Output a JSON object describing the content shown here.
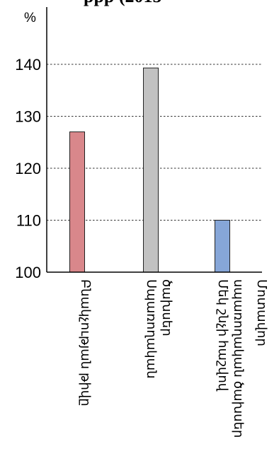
{
  "chart_data": {
    "type": "bar",
    "title_fragment": "ppp (2015",
    "ylabel": "%",
    "ylim": [
      100,
      150
    ],
    "yticks": [
      100,
      110,
      120,
      130,
      140
    ],
    "grid": true,
    "categories": [
      [
        "Բնակչության թիվը"
      ],
      [
        "Սպառողական",
        "ծախսեր"
      ],
      [
        "Մեկ շնչի հաշվով",
        "սպառողական ծախսեր"
      ],
      [
        "Մոտավոր"
      ]
    ],
    "values": [
      127,
      139.3,
      110,
      null
    ],
    "colors": [
      "#d9878b",
      "#c2c2c2",
      "#86a6d8",
      "#ffffff"
    ]
  }
}
